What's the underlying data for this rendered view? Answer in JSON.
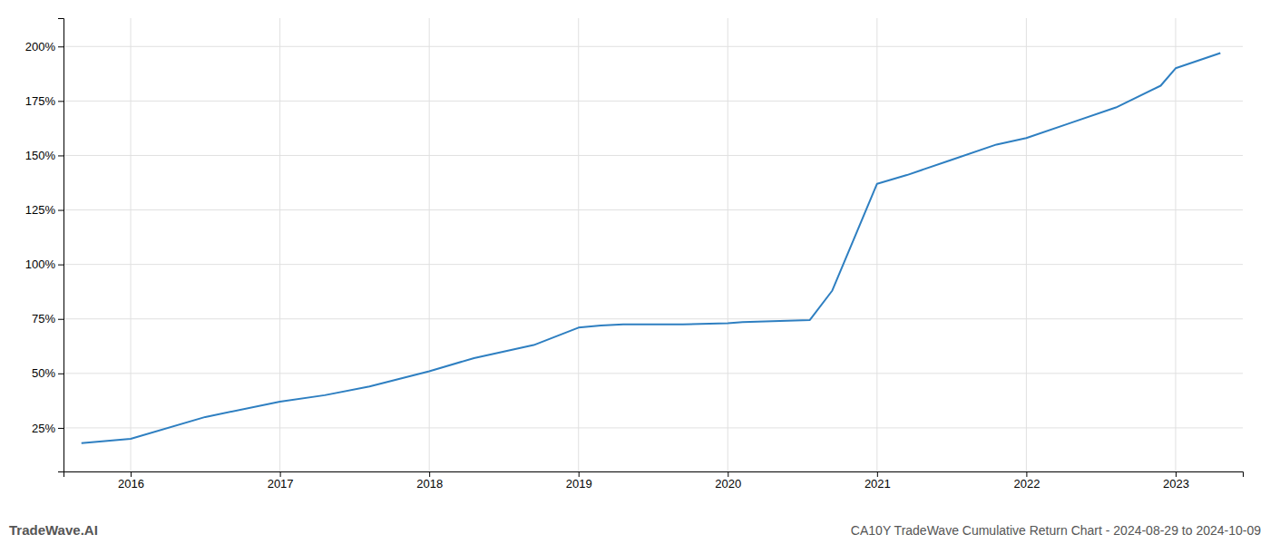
{
  "chart_data": {
    "type": "line",
    "title": "CA10Y TradeWave Cumulative Return Chart - 2024-08-29 to 2024-10-09",
    "annotations": [
      "TradeWave.AI"
    ],
    "color": "#2e7fc1",
    "x": [
      2015.67,
      2016.0,
      2016.5,
      2017.0,
      2017.3,
      2017.6,
      2018.0,
      2018.3,
      2018.7,
      2019.0,
      2019.15,
      2019.3,
      2019.5,
      2019.7,
      2020.0,
      2020.1,
      2020.3,
      2020.55,
      2020.7,
      2021.0,
      2021.2,
      2021.5,
      2021.8,
      2022.0,
      2022.3,
      2022.6,
      2022.9,
      2023.0,
      2023.3
    ],
    "values": [
      18,
      20,
      30,
      37,
      40,
      44,
      51,
      57,
      63,
      71,
      72,
      72.5,
      72.5,
      72.5,
      73,
      73.5,
      74,
      74.5,
      88,
      137,
      141,
      148,
      155,
      158,
      165,
      172,
      182,
      190,
      197
    ],
    "xlim": [
      2015.55,
      2023.45
    ],
    "xticks": [
      2016,
      2017,
      2018,
      2019,
      2020,
      2021,
      2022,
      2023
    ],
    "ylim": [
      5,
      213
    ],
    "yticks": [
      {
        "value": 25,
        "label": "25%"
      },
      {
        "value": 50,
        "label": "50%"
      },
      {
        "value": 75,
        "label": "75%"
      },
      {
        "value": 100,
        "label": "100%"
      },
      {
        "value": 125,
        "label": "125%"
      },
      {
        "value": 150,
        "label": "150%"
      },
      {
        "value": 175,
        "label": "175%"
      },
      {
        "value": 200,
        "label": "200%"
      }
    ],
    "grid": true
  }
}
